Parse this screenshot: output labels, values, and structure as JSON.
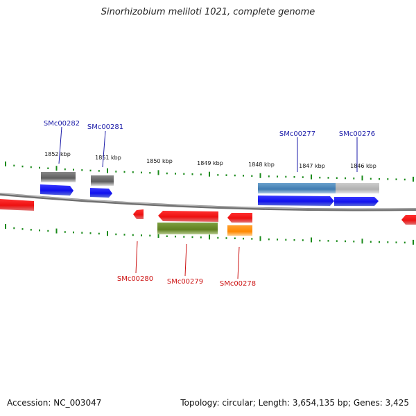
{
  "title": "Sinorhizobium meliloti 1021, complete genome",
  "footer": {
    "accession": "Accession: NC_003047",
    "summary": "Topology: circular; Length: 3,654,135 bp; Genes: 3,425"
  },
  "ruler_labels": [
    "1852 kbp",
    "1851 kbp",
    "1850 kbp",
    "1849 kbp",
    "1848 kbp",
    "1847 kbp",
    "1846 kbp"
  ],
  "gene_labels": {
    "top": [
      "SMc00282",
      "SMc00281",
      "SMc00277",
      "SMc00276"
    ],
    "bottom": [
      "SMc00280",
      "SMc00279",
      "SMc00278"
    ]
  },
  "colors": {
    "backbone": "#888888",
    "ruler": "#1a8a1a",
    "top_label": "#1a1aa8",
    "bottom_label": "#cc1111",
    "gene_blue": "#1010ee",
    "gene_red": "#ee1111",
    "cds_gray": "#666666",
    "cds_steel": "#4a86b8",
    "cds_light": "#bbbbbb",
    "cds_olive": "#6b8e23",
    "cds_orange": "#ff8800"
  }
}
